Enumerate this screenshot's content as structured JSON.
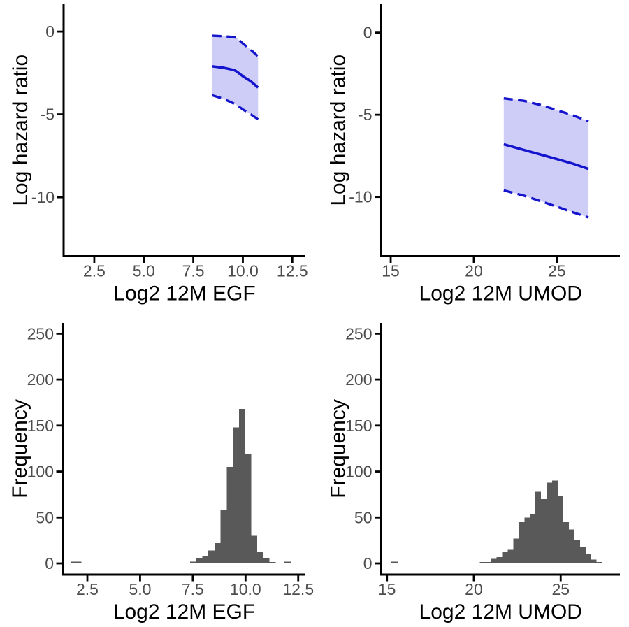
{
  "colors": {
    "background": "#ffffff",
    "axis": "#000000",
    "tick_label": "#4d4d4d",
    "axis_title": "#000000",
    "ribbon_fill": "#cecdf7",
    "ribbon_line": "#1414cd",
    "bar_fill": "#595959"
  },
  "chart_data": [
    {
      "id": "hazard-egf",
      "type": "area",
      "title": "",
      "xlabel": "Log2 12M EGF",
      "ylabel": "Log hazard ratio",
      "xlim": [
        0.95,
        13.16
      ],
      "ylim": [
        -13.56,
        1.65
      ],
      "grid": false,
      "legend": "none",
      "x_ticks": [
        {
          "v": 2.5,
          "label": "2.5"
        },
        {
          "v": 5.0,
          "label": "5.0"
        },
        {
          "v": 7.5,
          "label": "7.5"
        },
        {
          "v": 10.0,
          "label": "10.0"
        },
        {
          "v": 12.5,
          "label": "12.5"
        }
      ],
      "y_ticks": [
        {
          "v": 0,
          "label": "0"
        },
        {
          "v": -5,
          "label": "-5"
        },
        {
          "v": -10,
          "label": "-10"
        }
      ],
      "ribbon": {
        "x": [
          8.46,
          9.0,
          9.55,
          9.7,
          10.0,
          10.4,
          10.77
        ],
        "upper": [
          -0.25,
          -0.28,
          -0.33,
          -0.4,
          -0.72,
          -1.1,
          -1.5
        ],
        "center": [
          -2.1,
          -2.18,
          -2.32,
          -2.42,
          -2.7,
          -3.0,
          -3.38
        ],
        "lower": [
          -3.85,
          -4.05,
          -4.35,
          -4.45,
          -4.7,
          -5.0,
          -5.3
        ]
      }
    },
    {
      "id": "hazard-umod",
      "type": "area",
      "title": "",
      "xlabel": "Log2 12M UMOD",
      "ylabel": "Log hazard ratio",
      "xlim": [
        14.43,
        28.79
      ],
      "ylim": [
        -13.61,
        1.73
      ],
      "grid": false,
      "legend": "none",
      "x_ticks": [
        {
          "v": 15,
          "label": "15"
        },
        {
          "v": 20,
          "label": "20"
        },
        {
          "v": 25,
          "label": "25"
        }
      ],
      "y_ticks": [
        {
          "v": 0,
          "label": "0"
        },
        {
          "v": -5,
          "label": "-5"
        },
        {
          "v": -10,
          "label": "-10"
        }
      ],
      "ribbon": {
        "x": [
          21.8,
          23.0,
          24.0,
          25.0,
          26.0,
          26.9
        ],
        "upper": [
          -4.0,
          -4.15,
          -4.4,
          -4.72,
          -5.05,
          -5.4
        ],
        "center": [
          -6.8,
          -7.14,
          -7.42,
          -7.7,
          -7.99,
          -8.3
        ],
        "lower": [
          -9.6,
          -9.92,
          -10.25,
          -10.6,
          -10.95,
          -11.25
        ]
      }
    },
    {
      "id": "hist-egf",
      "type": "bar",
      "title": "",
      "xlabel": "Log2 12M EGF",
      "ylabel": "Frequency",
      "xlim": [
        1.34,
        12.84
      ],
      "ylim": [
        -12.17,
        261.7
      ],
      "grid": false,
      "legend": "none",
      "x_ticks": [
        {
          "v": 2.5,
          "label": "2.5"
        },
        {
          "v": 5.0,
          "label": "5.0"
        },
        {
          "v": 7.5,
          "label": "7.5"
        },
        {
          "v": 10.0,
          "label": "10.0"
        },
        {
          "v": 12.5,
          "label": "12.5"
        }
      ],
      "y_ticks": [
        {
          "v": 0,
          "label": "0"
        },
        {
          "v": 50,
          "label": "50"
        },
        {
          "v": 100,
          "label": "100"
        },
        {
          "v": 150,
          "label": "150"
        },
        {
          "v": 200,
          "label": "200"
        },
        {
          "v": 250,
          "label": "250"
        }
      ],
      "bins": {
        "start": 7.37,
        "width": 0.29,
        "values": [
          2,
          6,
          8,
          14,
          22,
          58,
          105,
          148,
          168,
          119,
          30,
          13,
          6,
          1
        ]
      },
      "outliers": [
        {
          "x": 1.73,
          "width": 0.49,
          "value": 2
        },
        {
          "x": 11.83,
          "width": 0.34,
          "value": 2
        }
      ]
    },
    {
      "id": "hist-umod",
      "type": "bar",
      "title": "",
      "xlabel": "Log2 12M UMOD",
      "ylabel": "Frequency",
      "xlim": [
        14.67,
        28.41
      ],
      "ylim": [
        -12.17,
        261.7
      ],
      "grid": false,
      "legend": "none",
      "x_ticks": [
        {
          "v": 15,
          "label": "15"
        },
        {
          "v": 20,
          "label": "20"
        },
        {
          "v": 25,
          "label": "25"
        }
      ],
      "y_ticks": [
        {
          "v": 0,
          "label": "0"
        },
        {
          "v": 50,
          "label": "50"
        },
        {
          "v": 100,
          "label": "100"
        },
        {
          "v": 150,
          "label": "150"
        },
        {
          "v": 200,
          "label": "200"
        },
        {
          "v": 250,
          "label": "250"
        }
      ],
      "bins": {
        "start": 20.35,
        "width": 0.32,
        "values": [
          1,
          1,
          5,
          7,
          12,
          15,
          27,
          45,
          50,
          54,
          78,
          70,
          88,
          90,
          73,
          45,
          37,
          26,
          18,
          10,
          4,
          1
        ]
      },
      "outliers": [
        {
          "x": 15.22,
          "width": 0.43,
          "value": 2
        }
      ]
    }
  ]
}
